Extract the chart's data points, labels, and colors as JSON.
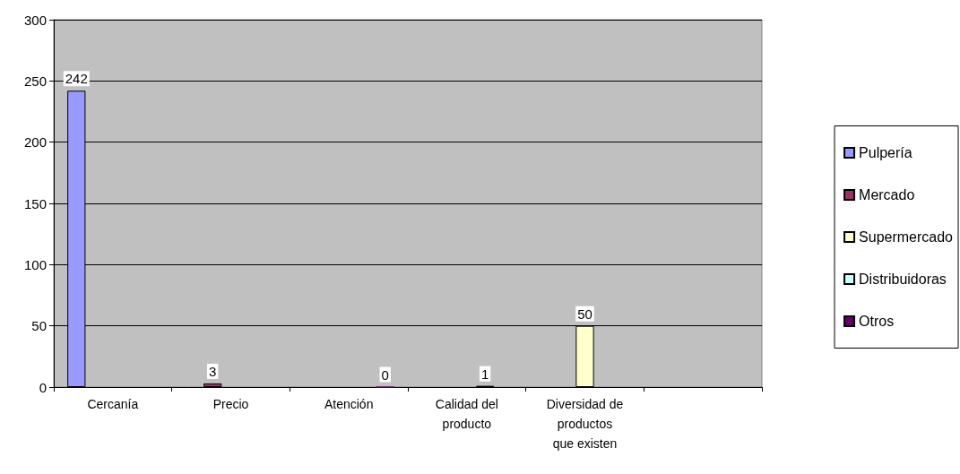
{
  "chart_data": {
    "type": "bar",
    "categories": [
      "Cercanía",
      "Precio",
      "Atención",
      "Calidad del\nproducto",
      "Diversidad de\nproductos\nque existen",
      null
    ],
    "series": [
      {
        "name": "Pulpería",
        "color": "#9999ff",
        "values": [
          242,
          null,
          null,
          null,
          null,
          null
        ]
      },
      {
        "name": "Mercado",
        "color": "#993366",
        "values": [
          null,
          3,
          null,
          null,
          null,
          null
        ]
      },
      {
        "name": "Supermercado",
        "color": "#ffffcc",
        "values": [
          null,
          null,
          null,
          null,
          50,
          null
        ]
      },
      {
        "name": "Distribuidoras",
        "color": "#ccffff",
        "values": [
          null,
          null,
          null,
          1,
          null,
          null
        ]
      },
      {
        "name": "Otros",
        "color": "#660066",
        "values": [
          null,
          null,
          0,
          null,
          null,
          null
        ]
      }
    ],
    "ylim": [
      0,
      300
    ],
    "yticks": [
      0,
      50,
      100,
      150,
      200,
      250,
      300
    ],
    "grid": "y",
    "legend": "right",
    "data_labels": true
  }
}
